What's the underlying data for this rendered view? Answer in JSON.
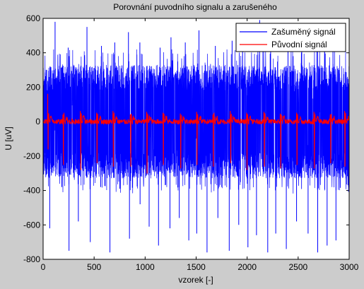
{
  "window": {
    "background": "#cccccc"
  },
  "chart_data": {
    "type": "line",
    "title": "Porovnání puvodního signalu a zarušeného",
    "xlabel": "vzorek [-]",
    "ylabel": "U [uV]",
    "xlim": [
      0,
      3000
    ],
    "ylim": [
      -800,
      600
    ],
    "xticks": [
      0,
      500,
      1000,
      1500,
      2000,
      2500,
      3000
    ],
    "yticks": [
      -800,
      -600,
      -400,
      -200,
      0,
      200,
      400,
      600
    ],
    "grid": false,
    "legend_position": "top-right",
    "series": [
      {
        "name": "Zašuměný signál",
        "color": "#0000ff",
        "description": "noisy signal",
        "upper_envelope": 420,
        "lower_envelope": -400,
        "typical_upper": 330,
        "typical_lower": -330,
        "spike_min_values": [
          -620,
          -380,
          -750,
          -580,
          -700,
          -380,
          -760,
          -390,
          -680,
          -480,
          -610,
          -720,
          -620,
          -560,
          -690,
          -650,
          -760,
          -560,
          -750,
          -600,
          -730,
          -660,
          -760,
          -650,
          -740,
          -580,
          -650,
          -760,
          -720,
          -690
        ],
        "spike_max_values": [
          580,
          430,
          550,
          440,
          460,
          520,
          460,
          430,
          490,
          460,
          530,
          440,
          470,
          430,
          590,
          450,
          480,
          520,
          440,
          460
        ]
      },
      {
        "name": "Původní signál",
        "color": "#ff0000",
        "description": "original ECG-like signal",
        "beat_positions": [
          50,
          200,
          370,
          530,
          690,
          860,
          1020,
          1180,
          1350,
          1510,
          1670,
          1840,
          2000,
          2170,
          2330,
          2490,
          2660,
          2820,
          2960
        ],
        "peak_values": [
          160,
          40,
          60,
          50,
          60,
          40,
          55,
          50,
          45,
          55,
          40,
          60,
          50,
          55,
          45,
          50,
          55,
          40,
          60
        ],
        "trough_values": [
          -160,
          -250,
          -280,
          -240,
          -260,
          -260,
          -300,
          -250,
          -270,
          -250,
          -260,
          -240,
          -280,
          -260,
          -270,
          -250,
          -270,
          -240,
          -260
        ],
        "baseline": 0
      }
    ]
  }
}
